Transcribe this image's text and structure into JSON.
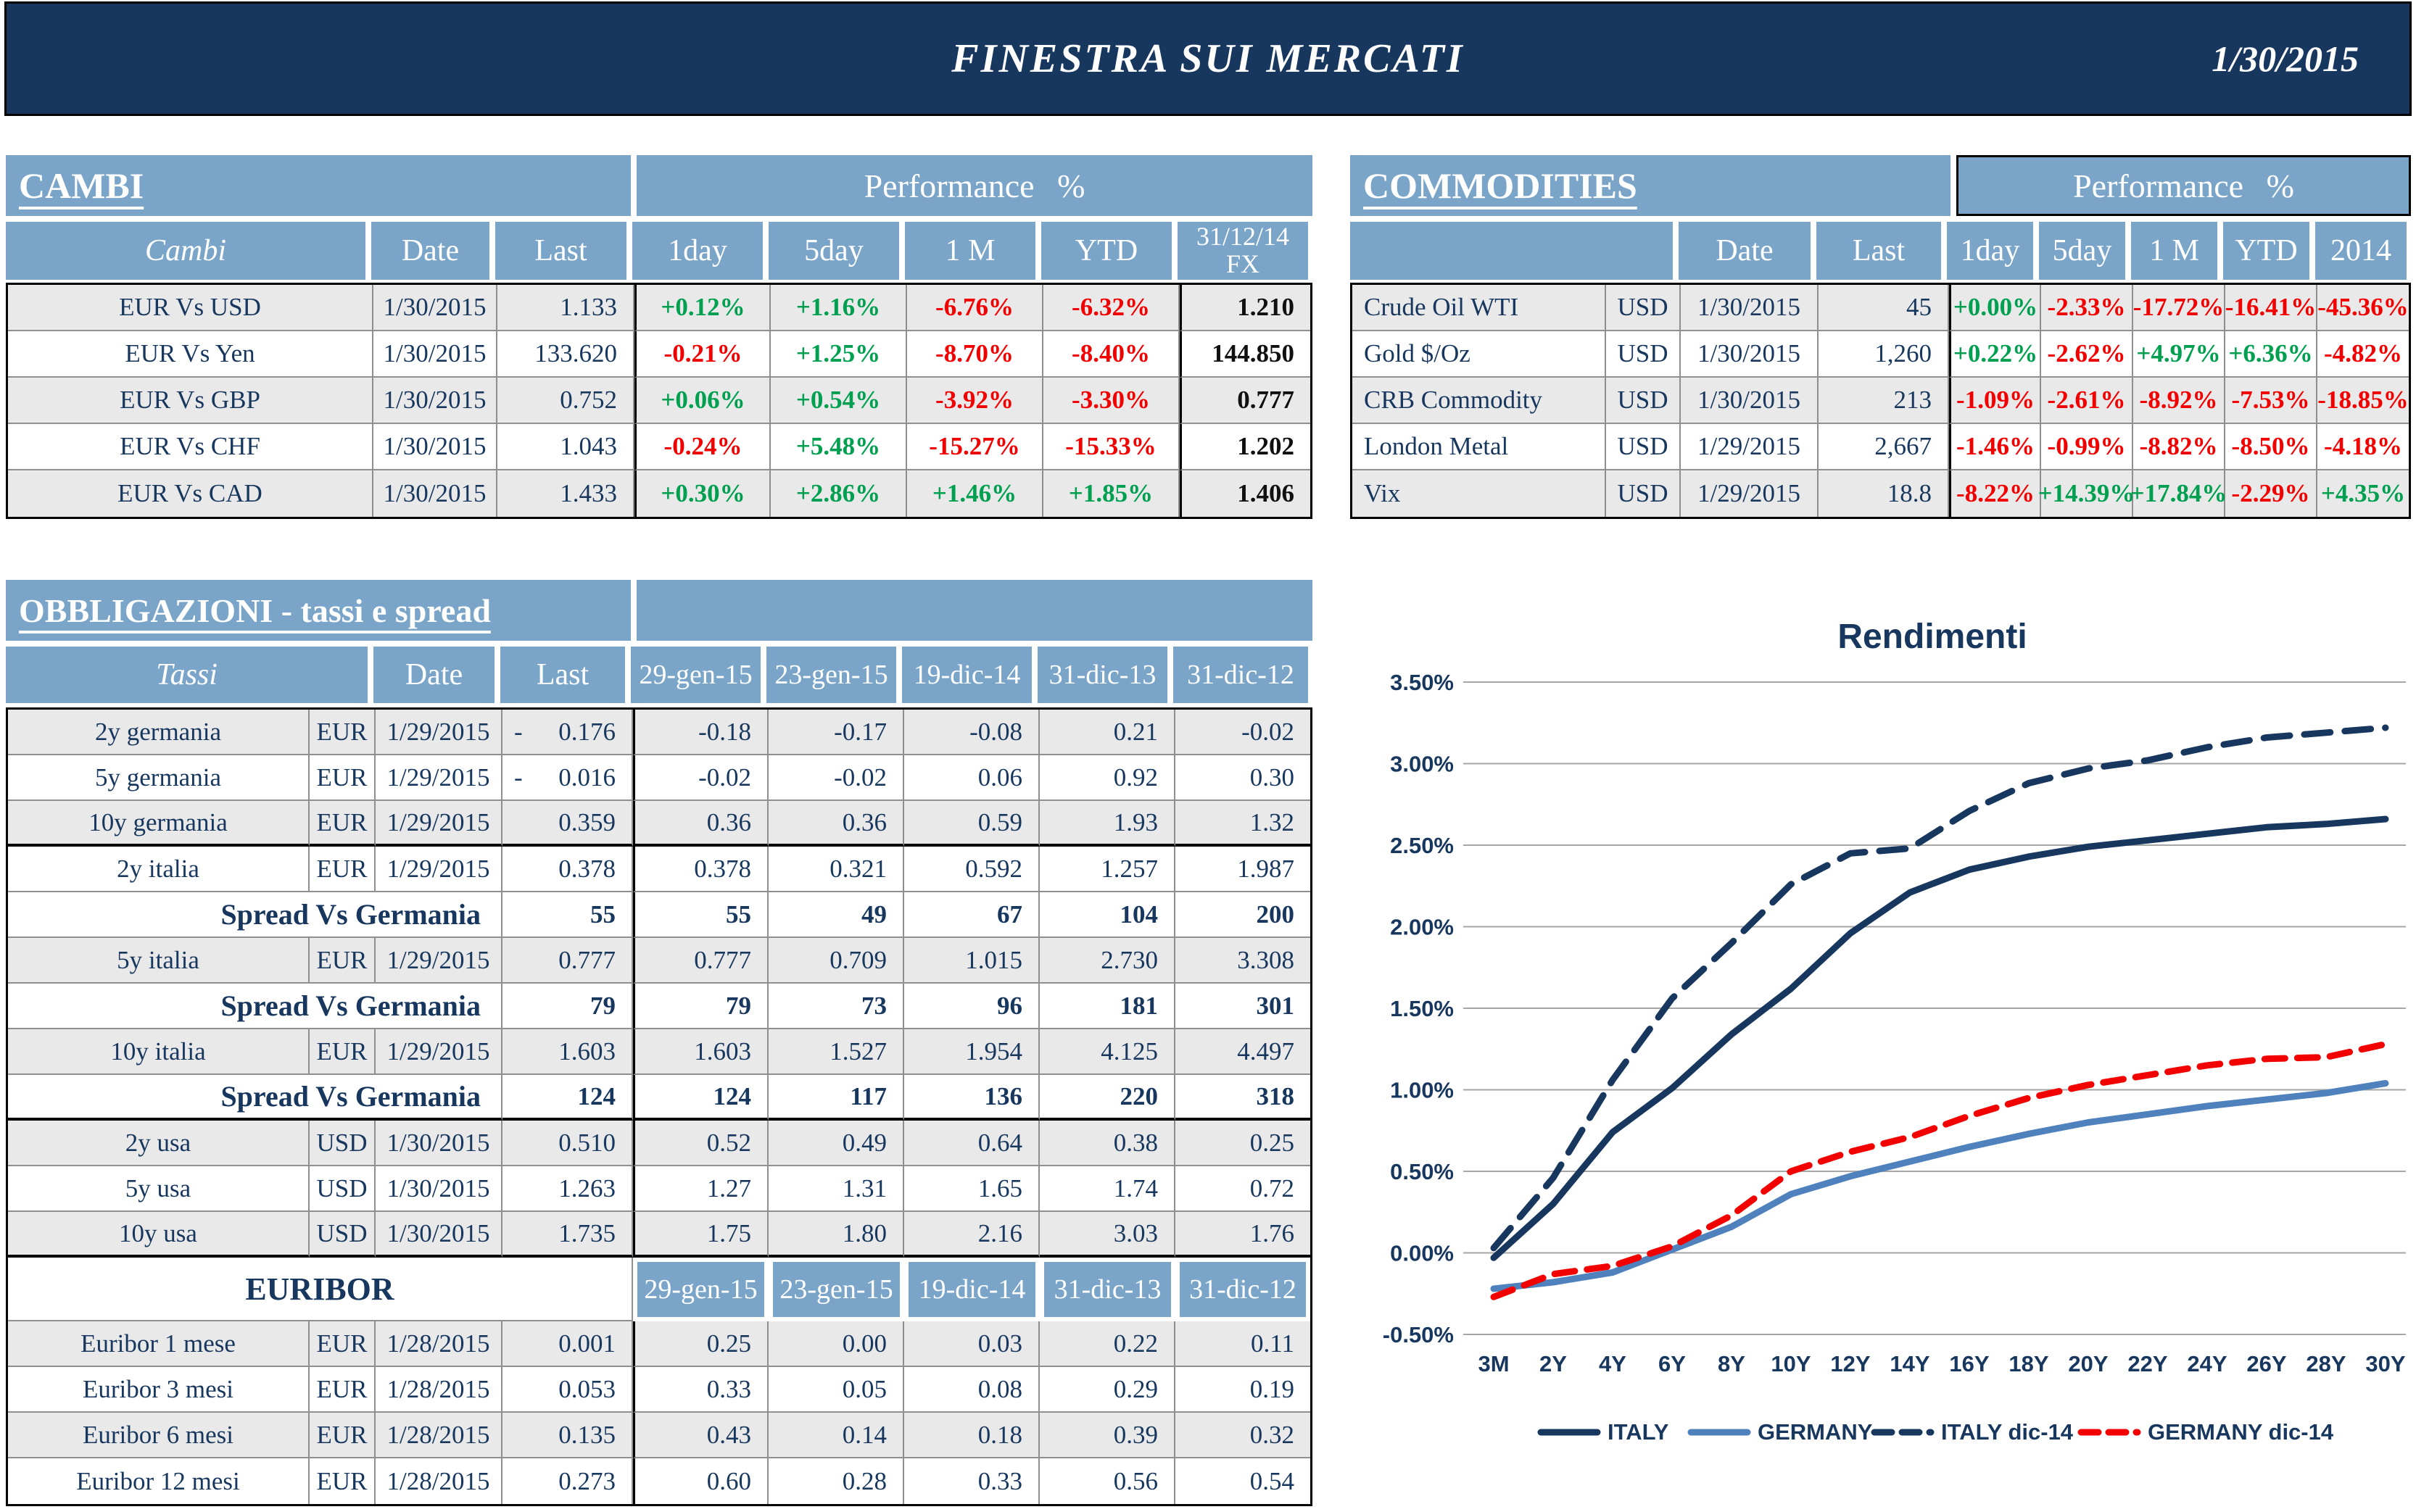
{
  "header": {
    "title": "FINESTRA SUI MERCATI",
    "date": "1/30/2015"
  },
  "cambi": {
    "title": "CAMBI",
    "perf_header": "Performance %",
    "columns": {
      "name": "Cambi",
      "date": "Date",
      "last": "Last",
      "perf": [
        "1day",
        "5day",
        "1 M",
        "YTD"
      ],
      "fx": "31/12/14 FX"
    },
    "rows": [
      {
        "name": "EUR Vs USD",
        "date": "1/30/2015",
        "last": "1.133",
        "perf": [
          "+0.12%",
          "+1.16%",
          "-6.76%",
          "-6.32%"
        ],
        "fx": "1.210"
      },
      {
        "name": "EUR Vs Yen",
        "date": "1/30/2015",
        "last": "133.620",
        "perf": [
          "-0.21%",
          "+1.25%",
          "-8.70%",
          "-8.40%"
        ],
        "fx": "144.850"
      },
      {
        "name": "EUR Vs GBP",
        "date": "1/30/2015",
        "last": "0.752",
        "perf": [
          "+0.06%",
          "+0.54%",
          "-3.92%",
          "-3.30%"
        ],
        "fx": "0.777"
      },
      {
        "name": "EUR Vs CHF",
        "date": "1/30/2015",
        "last": "1.043",
        "perf": [
          "-0.24%",
          "+5.48%",
          "-15.27%",
          "-15.33%"
        ],
        "fx": "1.202"
      },
      {
        "name": "EUR Vs CAD",
        "date": "1/30/2015",
        "last": "1.433",
        "perf": [
          "+0.30%",
          "+2.86%",
          "+1.46%",
          "+1.85%"
        ],
        "fx": "1.406"
      }
    ]
  },
  "commodities": {
    "title": "COMMODITIES",
    "perf_header": "Performance %",
    "columns": {
      "date": "Date",
      "last": "Last",
      "perf": [
        "1day",
        "5day",
        "1 M",
        "YTD",
        "2014"
      ]
    },
    "rows": [
      {
        "name": "Crude Oil WTI",
        "ccy": "USD",
        "date": "1/30/2015",
        "last": "45",
        "perf": [
          "+0.00%",
          "-2.33%",
          "-17.72%",
          "-16.41%",
          "-45.36%"
        ]
      },
      {
        "name": "Gold $/Oz",
        "ccy": "USD",
        "date": "1/30/2015",
        "last": "1,260",
        "perf": [
          "+0.22%",
          "-2.62%",
          "+4.97%",
          "+6.36%",
          "-4.82%"
        ]
      },
      {
        "name": "CRB Commodity",
        "ccy": "USD",
        "date": "1/30/2015",
        "last": "213",
        "perf": [
          "-1.09%",
          "-2.61%",
          "-8.92%",
          "-7.53%",
          "-18.85%"
        ]
      },
      {
        "name": "London Metal",
        "ccy": "USD",
        "date": "1/29/2015",
        "last": "2,667",
        "perf": [
          "-1.46%",
          "-0.99%",
          "-8.82%",
          "-8.50%",
          "-4.18%"
        ]
      },
      {
        "name": "Vix",
        "ccy": "USD",
        "date": "1/29/2015",
        "last": "18.8",
        "perf": [
          "-8.22%",
          "+14.39%",
          "+17.84%",
          "-2.29%",
          "+4.35%"
        ]
      }
    ]
  },
  "bonds": {
    "title": "OBBLIGAZIONI - tassi e spread",
    "columns": {
      "name": "Tassi",
      "date": "Date",
      "last": "Last",
      "dates": [
        "29-gen-15",
        "23-gen-15",
        "19-dic-14",
        "31-dic-13",
        "31-dic-12"
      ]
    },
    "rows": [
      {
        "type": "bond",
        "name": "2y germania",
        "ccy": "EUR",
        "date": "1/29/2015",
        "last": "0.176",
        "last_neg": true,
        "vals": [
          "-0.18",
          "-0.17",
          "-0.08",
          "0.21",
          "-0.02"
        ],
        "shaded": true
      },
      {
        "type": "bond",
        "name": "5y germania",
        "ccy": "EUR",
        "date": "1/29/2015",
        "last": "0.016",
        "last_neg": true,
        "vals": [
          "-0.02",
          "-0.02",
          "0.06",
          "0.92",
          "0.30"
        ],
        "shaded": false
      },
      {
        "type": "bond",
        "name": "10y germania",
        "ccy": "EUR",
        "date": "1/29/2015",
        "last": "0.359",
        "last_neg": false,
        "vals": [
          "0.36",
          "0.36",
          "0.59",
          "1.93",
          "1.32"
        ],
        "shaded": true,
        "thick": true
      },
      {
        "type": "bond",
        "name": "2y italia",
        "ccy": "EUR",
        "date": "1/29/2015",
        "last": "0.378",
        "last_neg": false,
        "vals": [
          "0.378",
          "0.321",
          "0.592",
          "1.257",
          "1.987"
        ],
        "shaded": false
      },
      {
        "type": "spread",
        "label": "Spread Vs Germania",
        "last": "55",
        "vals": [
          "55",
          "49",
          "67",
          "104",
          "200"
        ],
        "shaded": false
      },
      {
        "type": "bond",
        "name": "5y italia",
        "ccy": "EUR",
        "date": "1/29/2015",
        "last": "0.777",
        "last_neg": false,
        "vals": [
          "0.777",
          "0.709",
          "1.015",
          "2.730",
          "3.308"
        ],
        "shaded": true
      },
      {
        "type": "spread",
        "label": "Spread Vs Germania",
        "last": "79",
        "vals": [
          "79",
          "73",
          "96",
          "181",
          "301"
        ],
        "shaded": false
      },
      {
        "type": "bond",
        "name": "10y italia",
        "ccy": "EUR",
        "date": "1/29/2015",
        "last": "1.603",
        "last_neg": false,
        "vals": [
          "1.603",
          "1.527",
          "1.954",
          "4.125",
          "4.497"
        ],
        "shaded": true
      },
      {
        "type": "spread",
        "label": "Spread Vs Germania",
        "last": "124",
        "vals": [
          "124",
          "117",
          "136",
          "220",
          "318"
        ],
        "shaded": false,
        "thick": true
      },
      {
        "type": "bond",
        "name": "2y usa",
        "ccy": "USD",
        "date": "1/30/2015",
        "last": "0.510",
        "last_neg": false,
        "vals": [
          "0.52",
          "0.49",
          "0.64",
          "0.38",
          "0.25"
        ],
        "shaded": true
      },
      {
        "type": "bond",
        "name": "5y usa",
        "ccy": "USD",
        "date": "1/30/2015",
        "last": "1.263",
        "last_neg": false,
        "vals": [
          "1.27",
          "1.31",
          "1.65",
          "1.74",
          "0.72"
        ],
        "shaded": false
      },
      {
        "type": "bond",
        "name": "10y usa",
        "ccy": "USD",
        "date": "1/30/2015",
        "last": "1.735",
        "last_neg": false,
        "vals": [
          "1.75",
          "1.80",
          "2.16",
          "3.03",
          "1.76"
        ],
        "shaded": true,
        "thick": true
      },
      {
        "type": "euribor_header",
        "label": "EURIBOR",
        "dates": [
          "29-gen-15",
          "23-gen-15",
          "19-dic-14",
          "31-dic-13",
          "31-dic-12"
        ]
      },
      {
        "type": "bond",
        "name": "Euribor 1 mese",
        "ccy": "EUR",
        "date": "1/28/2015",
        "last": "0.001",
        "last_neg": false,
        "vals": [
          "0.25",
          "0.00",
          "0.03",
          "0.22",
          "0.11"
        ],
        "shaded": true
      },
      {
        "type": "bond",
        "name": "Euribor 3 mesi",
        "ccy": "EUR",
        "date": "1/28/2015",
        "last": "0.053",
        "last_neg": false,
        "vals": [
          "0.33",
          "0.05",
          "0.08",
          "0.29",
          "0.19"
        ],
        "shaded": false
      },
      {
        "type": "bond",
        "name": "Euribor 6 mesi",
        "ccy": "EUR",
        "date": "1/28/2015",
        "last": "0.135",
        "last_neg": false,
        "vals": [
          "0.43",
          "0.14",
          "0.18",
          "0.39",
          "0.32"
        ],
        "shaded": true
      },
      {
        "type": "bond",
        "name": "Euribor 12 mesi",
        "ccy": "EUR",
        "date": "1/28/2015",
        "last": "0.273",
        "last_neg": false,
        "vals": [
          "0.60",
          "0.28",
          "0.33",
          "0.56",
          "0.54"
        ],
        "shaded": false
      }
    ]
  },
  "chart_data": {
    "type": "line",
    "title": "Rendimenti",
    "x_labels": [
      "3M",
      "2Y",
      "4Y",
      "6Y",
      "8Y",
      "10Y",
      "12Y",
      "14Y",
      "16Y",
      "18Y",
      "20Y",
      "22Y",
      "24Y",
      "26Y",
      "28Y",
      "30Y"
    ],
    "y_tick_labels": [
      "3.50%",
      "3.00%",
      "2.50%",
      "2.00%",
      "1.50%",
      "1.00%",
      "0.50%",
      "0.00%",
      "-0.50%"
    ],
    "ylim": [
      -0.5,
      3.5
    ],
    "ytick_step": 0.5,
    "grid": true,
    "legend_position": "bottom",
    "series": [
      {
        "name": "ITALY",
        "style": "solid",
        "color": "#17375e",
        "values": [
          -0.03,
          0.3,
          0.74,
          1.01,
          1.34,
          1.62,
          1.96,
          2.21,
          2.35,
          2.43,
          2.49,
          2.53,
          2.57,
          2.61,
          2.63,
          2.66
        ]
      },
      {
        "name": "GERMANY",
        "style": "solid",
        "color": "#4f81bd",
        "values": [
          -0.22,
          -0.18,
          -0.12,
          0.02,
          0.16,
          0.36,
          0.47,
          0.56,
          0.65,
          0.73,
          0.8,
          0.85,
          0.9,
          0.94,
          0.98,
          1.04
        ]
      },
      {
        "name": "ITALY dic-14",
        "style": "dashed",
        "color": "#17375e",
        "values": [
          0.03,
          0.46,
          1.06,
          1.56,
          1.9,
          2.26,
          2.45,
          2.48,
          2.71,
          2.88,
          2.97,
          3.02,
          3.1,
          3.16,
          3.19,
          3.22
        ]
      },
      {
        "name": "GERMANY dic-14",
        "style": "dashed",
        "color": "#f20000",
        "values": [
          -0.27,
          -0.13,
          -0.08,
          0.04,
          0.23,
          0.5,
          0.62,
          0.71,
          0.84,
          0.95,
          1.03,
          1.09,
          1.15,
          1.19,
          1.2,
          1.28
        ]
      }
    ]
  }
}
